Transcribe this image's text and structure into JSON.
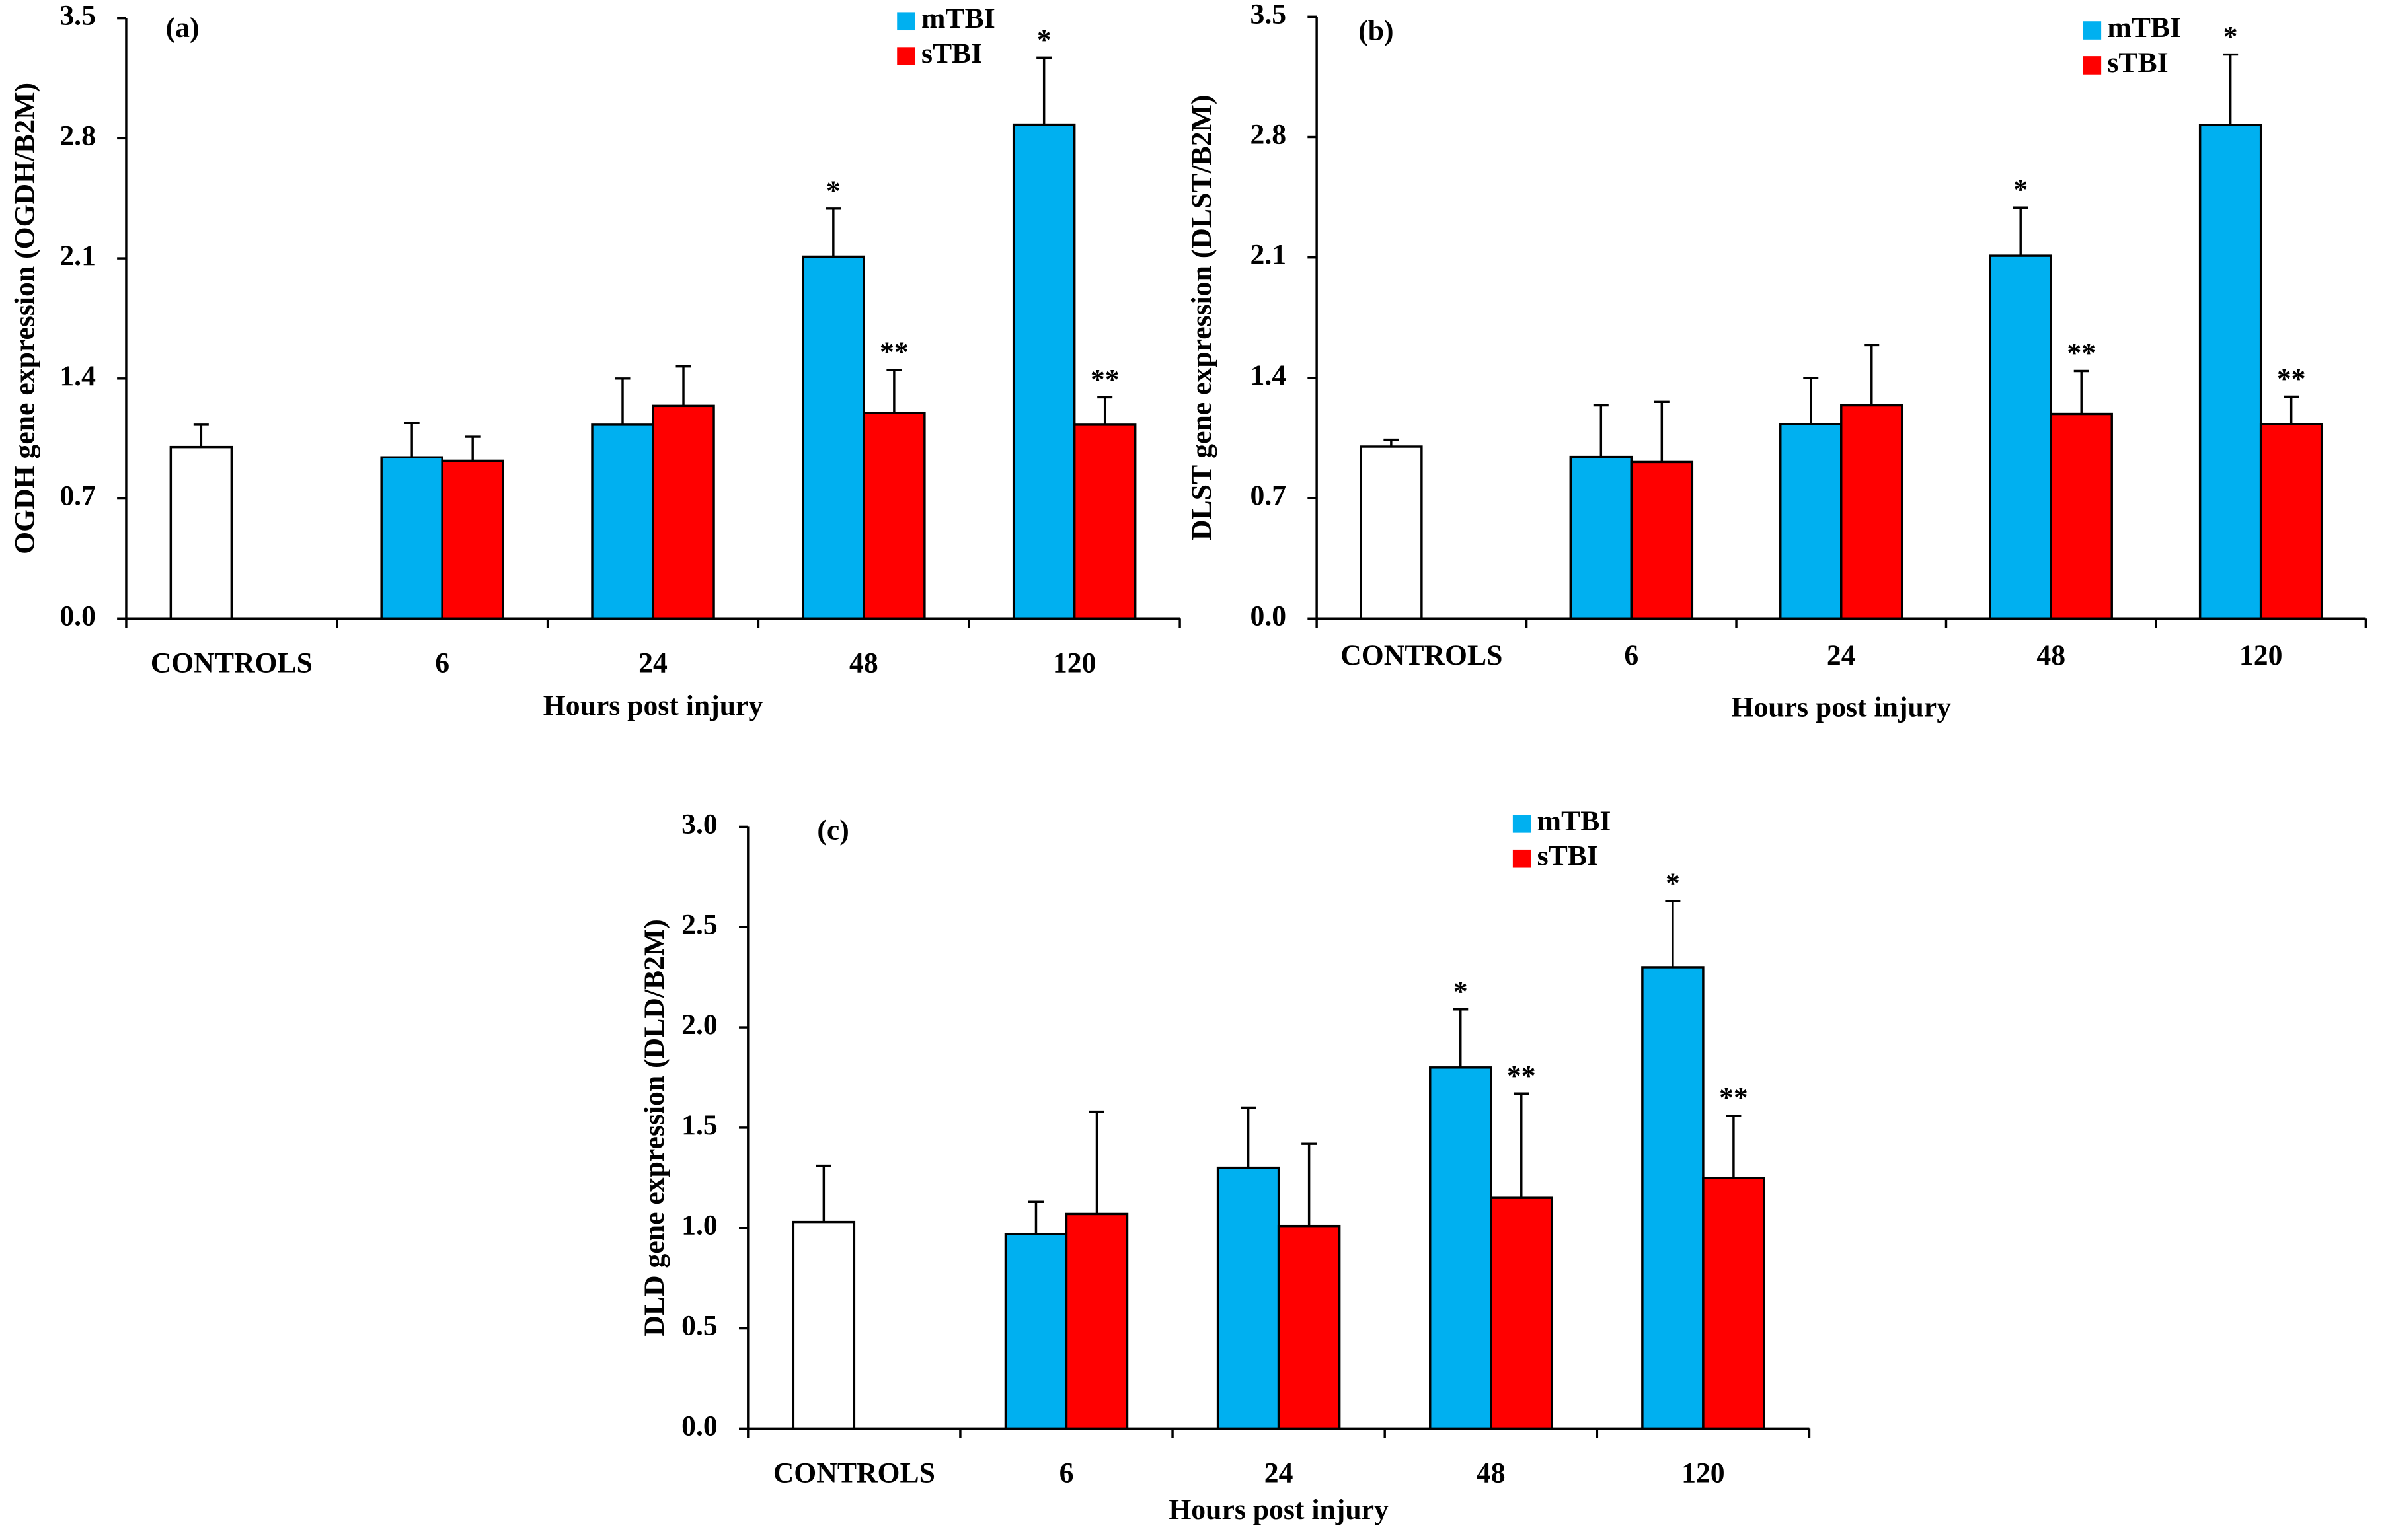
{
  "chart_data": [
    {
      "type": "bar",
      "label": "(a)",
      "ylabel": "OGDH gene expression (OGDH/B2M)",
      "xlabel": "Hours post injury",
      "categories": [
        "CONTROLS",
        "6",
        "24",
        "48",
        "120"
      ],
      "series": [
        {
          "color": "#ffffff",
          "values": [
            1.0,
            null,
            null,
            null,
            null
          ],
          "errors": [
            0.13,
            null,
            null,
            null,
            null
          ]
        },
        {
          "name": "mTBI",
          "color": "#00b0f0",
          "values": [
            null,
            0.94,
            1.13,
            2.11,
            2.88
          ],
          "errors": [
            null,
            0.2,
            0.27,
            0.28,
            0.39
          ],
          "markers": [
            null,
            null,
            null,
            "*",
            "*"
          ]
        },
        {
          "name": "sTBI",
          "color": "#ff0000",
          "values": [
            null,
            0.92,
            1.24,
            1.2,
            1.13
          ],
          "errors": [
            null,
            0.14,
            0.23,
            0.25,
            0.16
          ],
          "markers": [
            null,
            null,
            null,
            "**",
            "**"
          ]
        }
      ],
      "ylim": [
        0,
        3.5
      ],
      "yticks": [
        {
          "value": 0,
          "label": "0.0"
        },
        0.7,
        1.4,
        2.1,
        2.8,
        3.5
      ]
    },
    {
      "type": "bar",
      "label": "(b)",
      "ylabel": "DLST gene expression (DLST/B2M)",
      "xlabel": "Hours post injury",
      "categories": [
        "CONTROLS",
        "6",
        "24",
        "48",
        "120"
      ],
      "series": [
        {
          "color": "#ffffff",
          "values": [
            1.0,
            null,
            null,
            null,
            null
          ],
          "errors": [
            0.04,
            null,
            null,
            null,
            null
          ]
        },
        {
          "name": "mTBI",
          "color": "#00b0f0",
          "values": [
            null,
            0.94,
            1.13,
            2.11,
            2.87
          ],
          "errors": [
            null,
            0.3,
            0.27,
            0.28,
            0.41
          ],
          "markers": [
            null,
            null,
            null,
            "*",
            "*"
          ]
        },
        {
          "name": "sTBI",
          "color": "#ff0000",
          "values": [
            null,
            0.91,
            1.24,
            1.19,
            1.13
          ],
          "errors": [
            null,
            0.35,
            0.35,
            0.25,
            0.16
          ],
          "markers": [
            null,
            null,
            null,
            "**",
            "**"
          ]
        }
      ],
      "ylim": [
        0,
        3.5
      ],
      "yticks": [
        {
          "value": 0,
          "label": "0.0"
        },
        0.7,
        1.4,
        2.1,
        2.8,
        3.5
      ]
    },
    {
      "type": "bar",
      "label": "(c)",
      "ylabel": "DLD gene expression (DLD/B2M)",
      "xlabel": "Hours post injury",
      "categories": [
        "CONTROLS",
        "6",
        "24",
        "48",
        "120"
      ],
      "series": [
        {
          "color": "#ffffff",
          "values": [
            1.03,
            null,
            null,
            null,
            null
          ],
          "errors": [
            0.28,
            null,
            null,
            null,
            null
          ]
        },
        {
          "name": "mTBI",
          "color": "#00b0f0",
          "values": [
            null,
            0.97,
            1.3,
            1.8,
            2.3
          ],
          "errors": [
            null,
            0.16,
            0.3,
            0.29,
            0.33
          ],
          "markers": [
            null,
            null,
            null,
            "*",
            "*"
          ]
        },
        {
          "name": "sTBI",
          "color": "#ff0000",
          "values": [
            null,
            1.07,
            1.01,
            1.15,
            1.25
          ],
          "errors": [
            null,
            0.51,
            0.41,
            0.52,
            0.31
          ],
          "markers": [
            null,
            null,
            null,
            "**",
            "**"
          ]
        }
      ],
      "ylim": [
        0,
        3
      ],
      "yticks": [
        {
          "value": 0,
          "label": "0.0"
        },
        0.5,
        {
          "value": 1,
          "label": "1.0"
        },
        1.5,
        {
          "value": 2,
          "label": "2.0"
        },
        2.5,
        {
          "value": 3,
          "label": "3.0"
        }
      ]
    }
  ]
}
